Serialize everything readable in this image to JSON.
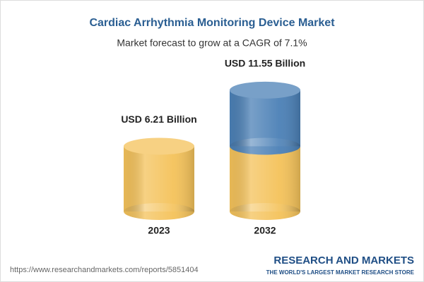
{
  "chart_data": {
    "type": "bar",
    "title": "Cardiac Arrhythmia Monitoring Device Market",
    "subtitle": "Market forecast to grow at a CAGR of 7.1%",
    "categories": [
      "2023",
      "2032"
    ],
    "values": [
      6.21,
      11.55
    ],
    "value_labels": [
      "USD 6.21 Billion",
      "USD 11.55 Billion"
    ],
    "colors": [
      "#f4c25a",
      "#4b80b6"
    ],
    "source": "https://www.researchandmarkets.com/reports/5851404",
    "brand": "RESEARCH AND MARKETS",
    "tagline": "THE WORLD'S LARGEST MARKET RESEARCH STORE"
  }
}
